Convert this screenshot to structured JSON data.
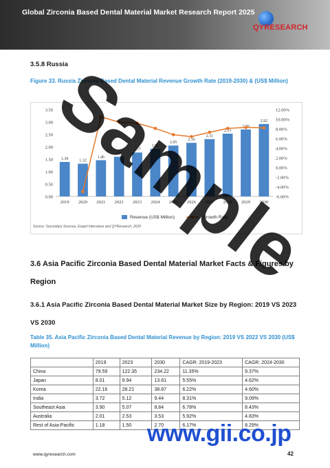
{
  "header": {
    "title": "Global Zirconia Based Dental Material Market Research Report 2025",
    "logo_text": "QYRESEARCH"
  },
  "section_358": "3.5.8   Russia",
  "figure_caption": "Figure 33.   Russia Zirconia Based Dental Material Revenue Growth Rate (2019-2030) & (US$ Million)",
  "chart_data": {
    "type": "bar",
    "categories": [
      "2019",
      "2020",
      "2021",
      "2022",
      "2023",
      "2024",
      "2025",
      "2026",
      "2027",
      "2028",
      "2029",
      "2030"
    ],
    "series": [
      {
        "name": "Revenue (US$ Million)",
        "type": "bar",
        "values": [
          1.39,
          1.32,
          1.46,
          1.6,
          1.77,
          1.92,
          2.05,
          2.16,
          2.31,
          2.53,
          2.7,
          2.92
        ],
        "color": "#4a86c8"
      },
      {
        "name": "Growth Rate",
        "type": "line",
        "values": [
          null,
          -5.0,
          10.5,
          9.4,
          9.2,
          8.1,
          6.8,
          6.4,
          7.3,
          8.1,
          8.3,
          8.2
        ],
        "color": "#e8792b"
      }
    ],
    "y_left_ticks": [
      "3.50",
      "3.00",
      "2.50",
      "2.00",
      "1.50",
      "1.00",
      "0.50",
      "0.00"
    ],
    "y_right_ticks": [
      "12.00%",
      "10.00%",
      "8.00%",
      "6.00%",
      "4.00%",
      "2.00%",
      "0.00%",
      "-2.00%",
      "-4.00%",
      "-6.00%"
    ],
    "ylim_left": [
      0,
      3.5
    ],
    "ylim_right": [
      -6,
      12
    ],
    "data_labels": [
      "1.39",
      "1.32",
      "1.46",
      "1.60",
      "1.77",
      "1.92",
      "2.05",
      "2.16",
      "2.31",
      "2.53",
      "2.70",
      "2.92"
    ],
    "legend": [
      "Revenue (US$ Million)",
      "Growth Rate"
    ],
    "legend_position": "bottom"
  },
  "source_text": "Source: Secondary Sources, Expert Interviews and QYResearch, 2025",
  "watermark": "Sample",
  "section_36": "3.6   Asia Pacific Zirconia Based Dental Material Market Facts & Figures by Region",
  "section_361": "3.6.1   Asia Pacific Zirconia Based Dental Material Market Size by Region: 2019 VS 2023 VS 2030",
  "table_caption": "Table 35.   Asia Pacific Zirconia Based Dental Material Revenue by Region: 2019 VS 2023 VS 2030 (US$ Million)",
  "table": {
    "headers": [
      "",
      "2019",
      "2023",
      "2030",
      "CAGR: 2019-2023",
      "CAGR: 2024-2030"
    ],
    "rows": [
      [
        "China",
        "79.59",
        "122.35",
        "234.22",
        "11.35%",
        "9.37%"
      ],
      [
        "Japan",
        "8.01",
        "9.94",
        "13.61",
        "5.55%",
        "4.62%"
      ],
      [
        "Korea",
        "22.16",
        "28.21",
        "38.87",
        "6.22%",
        "4.60%"
      ],
      [
        "India",
        "3.72",
        "5.12",
        "9.44",
        "8.31%",
        "9.09%"
      ],
      [
        "Southeast Asia",
        "3.90",
        "5.07",
        "8.84",
        "6.78%",
        "8.43%"
      ],
      [
        "Australia",
        "2.01",
        "2.53",
        "3.53",
        "5.92%",
        "4.83%"
      ],
      [
        "Rest of Asia-Pacific",
        "1.18",
        "1.50",
        "2.70",
        "6.17%",
        "8.29%"
      ]
    ]
  },
  "gii_watermark": "www.gii.co.jp",
  "footer_url": "www.qyresearch.com",
  "page_number": "42"
}
